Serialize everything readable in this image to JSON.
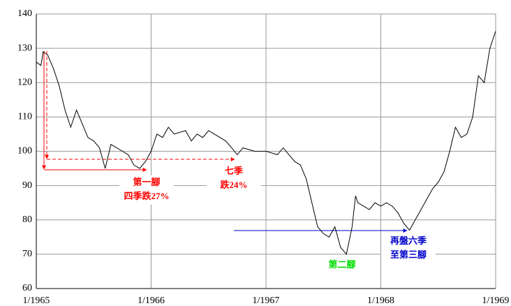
{
  "chart_data": {
    "type": "line",
    "color": "#000000",
    "x": [
      1965.0,
      1965.04,
      1965.06,
      1965.1,
      1965.15,
      1965.2,
      1965.25,
      1965.3,
      1965.35,
      1965.4,
      1965.45,
      1965.5,
      1965.55,
      1965.6,
      1965.65,
      1965.7,
      1965.75,
      1965.8,
      1965.85,
      1965.9,
      1965.95,
      1966.0,
      1966.05,
      1966.1,
      1966.15,
      1966.2,
      1966.3,
      1966.35,
      1966.4,
      1966.45,
      1966.5,
      1966.55,
      1966.6,
      1966.65,
      1966.7,
      1966.75,
      1966.8,
      1966.9,
      1967.0,
      1967.1,
      1967.15,
      1967.2,
      1967.25,
      1967.3,
      1967.35,
      1967.4,
      1967.45,
      1967.5,
      1967.55,
      1967.6,
      1967.65,
      1967.7,
      1967.75,
      1967.78,
      1967.8,
      1967.85,
      1967.9,
      1967.95,
      1968.0,
      1968.05,
      1968.1,
      1968.15,
      1968.2,
      1968.25,
      1968.3,
      1968.35,
      1968.4,
      1968.45,
      1968.5,
      1968.55,
      1968.6,
      1968.65,
      1968.7,
      1968.75,
      1968.8,
      1968.85,
      1968.9,
      1968.95,
      1969.0
    ],
    "values": [
      126,
      125,
      129,
      128,
      124,
      119,
      112,
      107,
      112,
      108,
      104,
      103,
      101,
      95,
      102,
      101,
      100,
      99,
      96,
      95,
      97,
      100,
      105,
      104,
      107,
      105,
      106,
      103,
      105,
      104,
      106,
      105,
      104,
      103,
      101,
      99,
      101,
      100,
      100,
      99,
      101,
      99,
      97,
      96,
      92,
      85,
      78,
      76,
      75,
      78,
      72,
      70,
      78,
      87,
      85,
      84,
      83,
      85,
      84,
      85,
      84,
      82,
      79,
      77,
      80,
      83,
      86,
      89,
      91,
      94,
      100,
      107,
      104,
      105,
      110,
      122,
      120,
      130,
      135
    ],
    "xlim": [
      1965,
      1969
    ],
    "xticks": [
      {
        "value": 1965,
        "label": "1/1965"
      },
      {
        "value": 1966,
        "label": "1/1966"
      },
      {
        "value": 1967,
        "label": "1/1967"
      },
      {
        "value": 1968,
        "label": "1/1968"
      },
      {
        "value": 1969,
        "label": "1/1969"
      }
    ],
    "ylim": [
      60,
      140
    ],
    "yticks": [
      60,
      70,
      80,
      90,
      100,
      110,
      120,
      130,
      140
    ],
    "grid": true,
    "annotations": [
      {
        "lines": [
          "第一腳",
          "四季跌27%"
        ],
        "color": "#ff0000"
      },
      {
        "lines": [
          "七季",
          "跌24%"
        ],
        "color": "#ff0000"
      },
      {
        "lines": [
          "第二腳"
        ],
        "color": "#00dd00"
      },
      {
        "lines": [
          "再盤六季",
          "至第三腳"
        ],
        "color": "#0000cc"
      }
    ]
  }
}
